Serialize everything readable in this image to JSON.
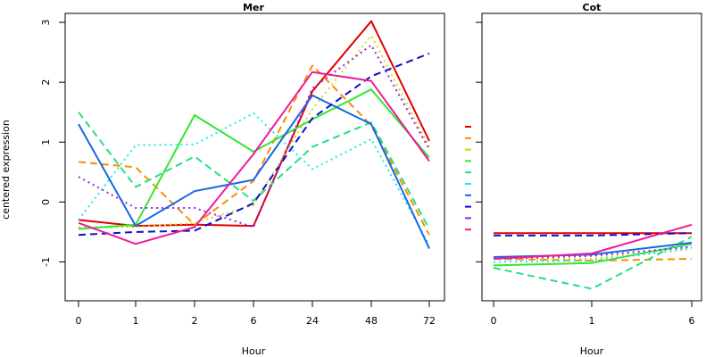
{
  "chart_data": [
    {
      "type": "line",
      "title": "Mer",
      "xlabel": "Hour",
      "ylabel": "centered expression",
      "categories": [
        "0",
        "1",
        "2",
        "6",
        "24",
        "48",
        "72"
      ],
      "ylim": [
        -1.65,
        3.15
      ],
      "yticks": [
        -1,
        0,
        1,
        2,
        3
      ],
      "series": [
        {
          "color": "#e00000",
          "dash": "solid",
          "values": [
            -0.3,
            -0.4,
            -0.38,
            -0.4,
            1.85,
            3.02,
            1.02
          ]
        },
        {
          "color": "#ff8c00",
          "dash": "dashed",
          "values": [
            0.67,
            0.58,
            -0.38,
            0.35,
            2.28,
            1.28,
            -0.55
          ]
        },
        {
          "color": "#d8d800",
          "dash": "dotted",
          "values": [
            -0.42,
            -0.42,
            -0.35,
            -0.05,
            1.55,
            2.78,
            0.92
          ]
        },
        {
          "color": "#33e633",
          "dash": "solid",
          "values": [
            -0.45,
            -0.38,
            1.45,
            0.84,
            1.38,
            1.88,
            0.74
          ]
        },
        {
          "color": "#22e080",
          "dash": "dashed",
          "values": [
            1.5,
            0.25,
            0.76,
            0.02,
            0.92,
            1.33,
            -0.45
          ]
        },
        {
          "color": "#22e6e6",
          "dash": "dotted",
          "values": [
            -0.3,
            0.95,
            0.96,
            1.48,
            0.55,
            1.05,
            -0.72
          ]
        },
        {
          "color": "#1a66e6",
          "dash": "solid",
          "values": [
            1.3,
            -0.4,
            0.18,
            0.37,
            1.78,
            1.3,
            -0.78
          ]
        },
        {
          "color": "#1010cc",
          "dash": "dashed",
          "values": [
            -0.55,
            -0.5,
            -0.48,
            -0.02,
            1.4,
            2.1,
            2.48
          ]
        },
        {
          "color": "#9a22e6",
          "dash": "dotted",
          "values": [
            0.42,
            -0.1,
            -0.1,
            -0.42,
            1.9,
            2.62,
            0.88
          ]
        },
        {
          "color": "#ee1a99",
          "dash": "solid",
          "values": [
            -0.35,
            -0.7,
            -0.42,
            0.8,
            2.17,
            2.02,
            0.68
          ]
        }
      ]
    },
    {
      "type": "line",
      "title": "Cot",
      "xlabel": "Hour",
      "ylabel": "",
      "categories": [
        "0",
        "1",
        "6"
      ],
      "ylim": [
        -1.65,
        3.15
      ],
      "series": [
        {
          "color": "#e00000",
          "dash": "solid",
          "values": [
            -0.52,
            -0.52,
            -0.52
          ]
        },
        {
          "color": "#ff8c00",
          "dash": "dashed",
          "values": [
            -0.95,
            -0.98,
            -0.95
          ]
        },
        {
          "color": "#d8d800",
          "dash": "dotted",
          "values": [
            -0.95,
            -0.95,
            -0.75
          ]
        },
        {
          "color": "#33e633",
          "dash": "solid",
          "values": [
            -1.06,
            -1.02,
            -0.7
          ]
        },
        {
          "color": "#22e080",
          "dash": "dashed",
          "values": [
            -1.1,
            -1.45,
            -0.58
          ]
        },
        {
          "color": "#22e6e6",
          "dash": "dotted",
          "values": [
            -1.0,
            -0.98,
            -0.78
          ]
        },
        {
          "color": "#1a66e6",
          "dash": "solid",
          "values": [
            -0.92,
            -0.88,
            -0.68
          ]
        },
        {
          "color": "#1010cc",
          "dash": "dashed",
          "values": [
            -0.56,
            -0.56,
            -0.52
          ]
        },
        {
          "color": "#9a22e6",
          "dash": "dotted",
          "values": [
            -0.95,
            -0.9,
            -0.75
          ]
        },
        {
          "color": "#ee1a99",
          "dash": "solid",
          "values": [
            -0.95,
            -0.86,
            -0.38
          ]
        }
      ]
    }
  ]
}
